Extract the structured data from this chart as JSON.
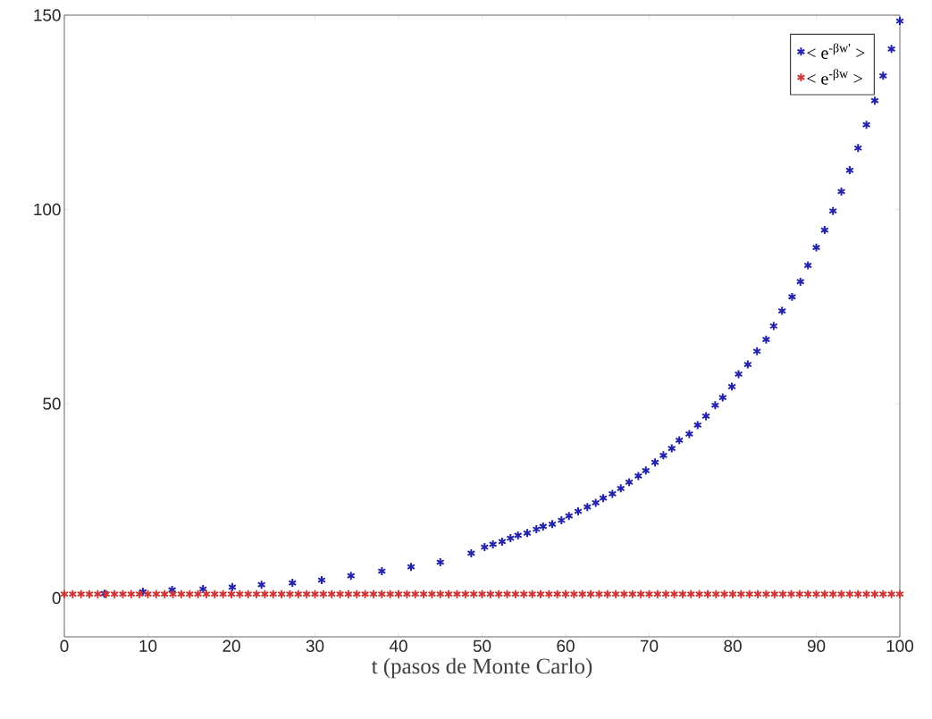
{
  "chart_data": {
    "type": "scatter",
    "xlabel": "t (pasos de Monte Carlo)",
    "xlim": [
      0,
      100
    ],
    "xticks": [
      0,
      10,
      20,
      30,
      40,
      50,
      60,
      70,
      80,
      90,
      100
    ],
    "ylim": [
      -10,
      150
    ],
    "yticks": [
      0,
      50,
      100,
      150
    ],
    "marker": "cross",
    "legend": "top right",
    "grid": false,
    "series": [
      {
        "name": "< e$^{-βw'}$ >",
        "color": "#2222aa",
        "x": [
          4.8,
          9.4,
          12.9,
          16.6,
          20.1,
          23.6,
          27.3,
          30.8,
          34.3,
          38,
          41.5,
          45,
          48.7,
          50.3,
          51.3,
          52.4,
          53.4,
          54.3,
          55.4,
          56.5,
          57.3,
          58.4,
          59.5,
          60.4,
          61.5,
          62.6,
          63.6,
          64.5,
          65.6,
          66.6,
          67.6,
          68.7,
          69.6,
          70.7,
          71.7,
          72.7,
          73.6,
          74.8,
          75.8,
          76.8,
          77.9,
          78.8,
          79.9,
          80.7,
          81.8,
          82.9,
          84,
          84.9,
          85.9,
          87.1,
          88.1,
          89,
          90,
          91,
          92,
          93,
          94,
          95,
          96,
          97,
          98,
          99,
          100
        ],
        "values": [
          1.1,
          1.6,
          2.1,
          2.3,
          2.8,
          3.4,
          3.9,
          4.6,
          5.7,
          6.9,
          8.0,
          9.2,
          11.5,
          13.1,
          13.8,
          14.5,
          15.4,
          16.1,
          16.7,
          17.7,
          18.4,
          19.0,
          20.0,
          21.1,
          22.3,
          23.4,
          24.5,
          25.7,
          26.8,
          28.2,
          29.8,
          31.4,
          32.8,
          34.9,
          36.7,
          38.5,
          40.6,
          42.2,
          44.5,
          46.8,
          49.6,
          51.6,
          54.4,
          57.6,
          60.1,
          63.5,
          66.5,
          70.0,
          73.9,
          77.5,
          81.4,
          85.6,
          90.2,
          94.7,
          99.6,
          104.6,
          110.1,
          115.8,
          121.8,
          128.0,
          134.4,
          141.3,
          148.5
        ]
      },
      {
        "name": "< e$^{-βw}$ >",
        "color": "#d03535",
        "x": [
          0,
          1,
          2,
          3,
          4,
          5,
          6,
          7,
          8,
          9,
          10,
          11,
          12,
          13,
          14,
          15,
          16,
          17,
          18,
          19,
          20,
          21,
          22,
          23,
          24,
          25,
          26,
          27,
          28,
          29,
          30,
          31,
          32,
          33,
          34,
          35,
          36,
          37,
          38,
          39,
          40,
          41,
          42,
          43,
          44,
          45,
          46,
          47,
          48,
          49,
          50,
          51,
          52,
          53,
          54,
          55,
          56,
          57,
          58,
          59,
          60,
          61,
          62,
          63,
          64,
          65,
          66,
          67,
          68,
          69,
          70,
          71,
          72,
          73,
          74,
          75,
          76,
          77,
          78,
          79,
          80,
          81,
          82,
          83,
          84,
          85,
          86,
          87,
          88,
          89,
          90,
          91,
          92,
          93,
          94,
          95,
          96,
          97,
          98,
          99,
          100
        ],
        "values": [
          1,
          1,
          1,
          1,
          1,
          1,
          1,
          1,
          1,
          1,
          1,
          1,
          1,
          1,
          1,
          1,
          1,
          1,
          1,
          1,
          1,
          1,
          1,
          1,
          1,
          1,
          1,
          1,
          1,
          1,
          1,
          1,
          1,
          1,
          1,
          1,
          1,
          1,
          1,
          1,
          1,
          1,
          1,
          1,
          1,
          1,
          1,
          1,
          1,
          1,
          1,
          1,
          1,
          1,
          1,
          1,
          1,
          1,
          1,
          1,
          1,
          1,
          1,
          1,
          1,
          1,
          1,
          1,
          1,
          1,
          1,
          1,
          1,
          1,
          1,
          1,
          1,
          1,
          1,
          1,
          1,
          1,
          1,
          1,
          1,
          1,
          1,
          1,
          1,
          1,
          1,
          1,
          1,
          1,
          1,
          1,
          1,
          1,
          1,
          1,
          1
        ]
      }
    ]
  }
}
